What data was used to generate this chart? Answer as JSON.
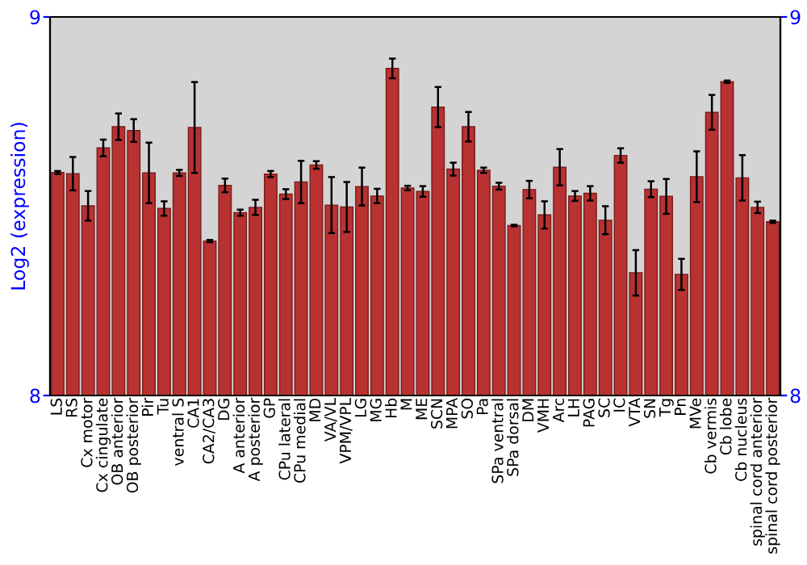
{
  "chart_data": {
    "type": "bar",
    "ylabel": "Log2 (expression)",
    "categories": [
      "LS",
      "RS",
      "Cx motor",
      "Cx cingulate",
      "OB anterior",
      "OB posterior",
      "Pir",
      "Tu",
      "ventral S",
      "CA1",
      "CA2/CA3",
      "DG",
      "A anterior",
      "A posterior",
      "GP",
      "CPu lateral",
      "CPu medial",
      "MD",
      "VA/VL",
      "VPM/VPL",
      "LG",
      "MG",
      "Hb",
      "M",
      "ME",
      "SCN",
      "MPA",
      "SO",
      "Pa",
      "SPa ventral",
      "SPa dorsal",
      "DM",
      "VMH",
      "Arc",
      "LH",
      "PAG",
      "SC",
      "IC",
      "VTA",
      "SN",
      "Tg",
      "Pn",
      "MVe",
      "Cb vermis",
      "Cb lobe",
      "Cb nucleus",
      "spinal cord anterior",
      "spinal cord posterior"
    ],
    "values": [
      8.589,
      8.586,
      8.501,
      8.654,
      8.71,
      8.7,
      8.588,
      8.494,
      8.588,
      8.708,
      8.408,
      8.555,
      8.483,
      8.497,
      8.585,
      8.532,
      8.564,
      8.609,
      8.503,
      8.498,
      8.552,
      8.527,
      8.864,
      8.548,
      8.539,
      8.762,
      8.598,
      8.71,
      8.595,
      8.553,
      8.449,
      8.544,
      8.477,
      8.603,
      8.527,
      8.534,
      8.463,
      8.634,
      8.324,
      8.545,
      8.526,
      8.32,
      8.578,
      8.748,
      8.829,
      8.575,
      8.497,
      8.459
    ],
    "errors": [
      0.004,
      0.044,
      0.039,
      0.022,
      0.035,
      0.03,
      0.08,
      0.019,
      0.008,
      0.12,
      0.003,
      0.018,
      0.008,
      0.02,
      0.008,
      0.013,
      0.056,
      0.01,
      0.074,
      0.066,
      0.05,
      0.019,
      0.026,
      0.006,
      0.014,
      0.053,
      0.017,
      0.039,
      0.007,
      0.009,
      0.002,
      0.023,
      0.036,
      0.048,
      0.013,
      0.019,
      0.037,
      0.019,
      0.06,
      0.021,
      0.046,
      0.041,
      0.067,
      0.046,
      0.003,
      0.06,
      0.015,
      0.003
    ],
    "color": "#b83232",
    "ylim": [
      8,
      9
    ],
    "yticks": [
      8,
      9
    ],
    "y2lim": [
      8,
      9
    ],
    "y2ticks": [
      8,
      9
    ],
    "grid": false,
    "legend": false
  }
}
